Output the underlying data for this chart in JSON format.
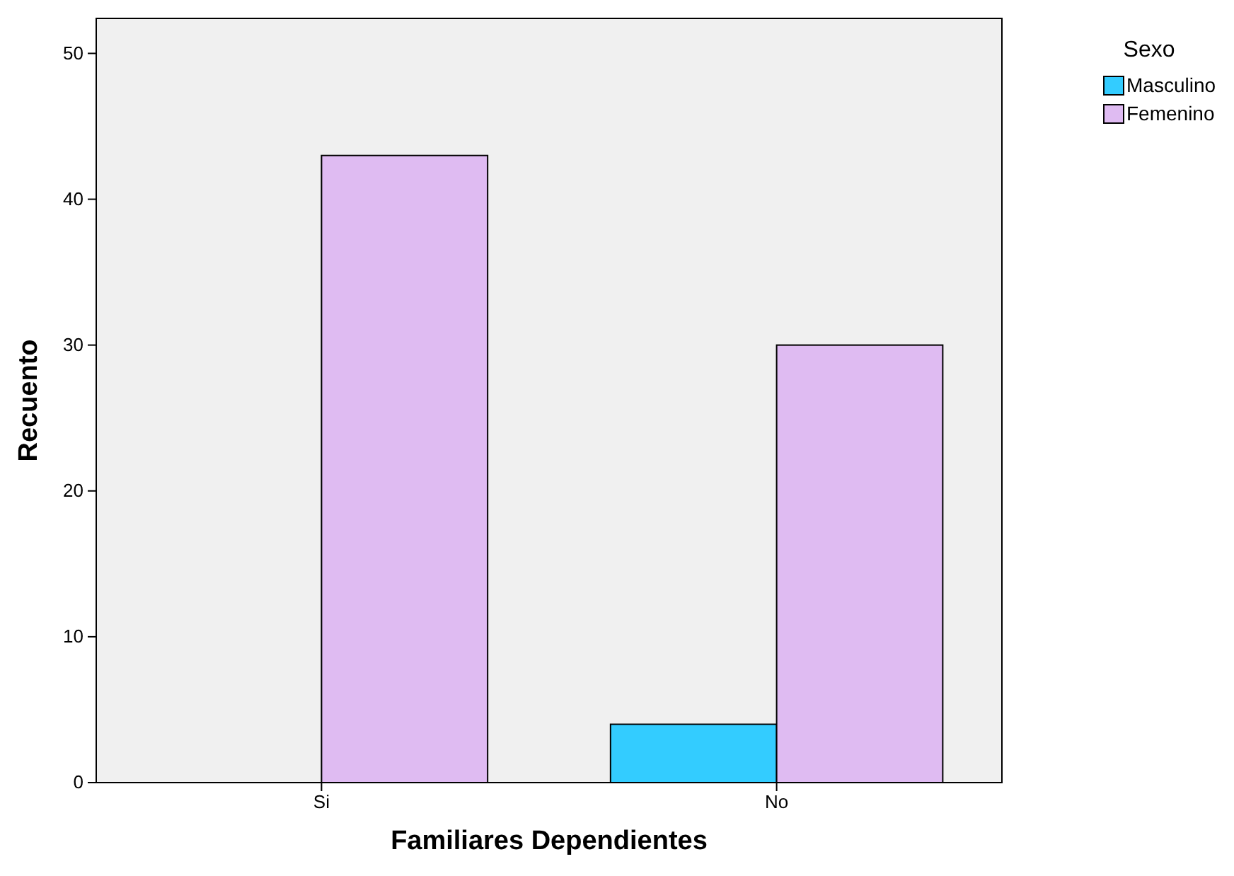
{
  "chart_data": {
    "type": "bar",
    "xlabel": "Familiares Dependientes",
    "ylabel": "Recuento",
    "legend_title": "Sexo",
    "categories": [
      "Si",
      "No"
    ],
    "series": [
      {
        "name": "Masculino",
        "color": "#33ccff",
        "values": [
          0,
          4
        ]
      },
      {
        "name": "Femenino",
        "color": "#dfbbf2",
        "values": [
          43,
          30
        ]
      }
    ],
    "ylim": [
      0,
      52.4
    ],
    "yticks": [
      0,
      10,
      20,
      30,
      40,
      50
    ],
    "grid": false,
    "legend": "top right"
  }
}
